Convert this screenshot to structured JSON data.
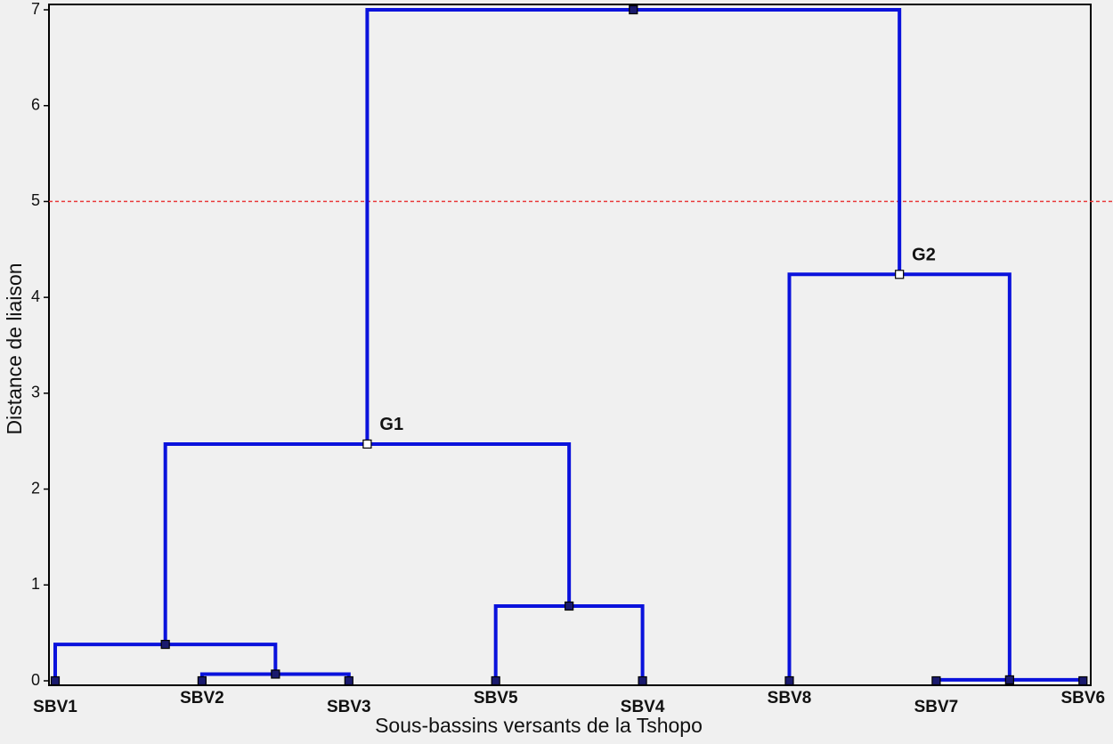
{
  "chart_data": {
    "type": "dendrogram",
    "xlabel": "Sous-bassins versants de la Tshopo",
    "ylabel": "Distance de liaison",
    "ylim": [
      0,
      7
    ],
    "yticks": [
      0,
      1,
      2,
      3,
      4,
      5,
      6,
      7
    ],
    "threshold": 5,
    "threshold_color": "#e8393a",
    "color": "#0a12dc",
    "tree": {
      "height": 7,
      "children": [
        {
          "label": "G1",
          "height": 2.47,
          "children": [
            {
              "height": 0.38,
              "children": [
                {
                  "label": "SBV1"
                },
                {
                  "height": 0.07,
                  "children": [
                    {
                      "label": "SBV2"
                    },
                    {
                      "label": "SBV3"
                    }
                  ]
                }
              ]
            },
            {
              "height": 0.78,
              "children": [
                {
                  "label": "SBV5"
                },
                {
                  "label": "SBV4"
                }
              ]
            }
          ]
        },
        {
          "label": "G2",
          "height": 4.24,
          "children": [
            {
              "label": "SBV8"
            },
            {
              "height": 0.01,
              "children": [
                {
                  "label": "SBV7"
                },
                {
                  "label": "SBV6"
                }
              ]
            }
          ]
        }
      ]
    }
  }
}
